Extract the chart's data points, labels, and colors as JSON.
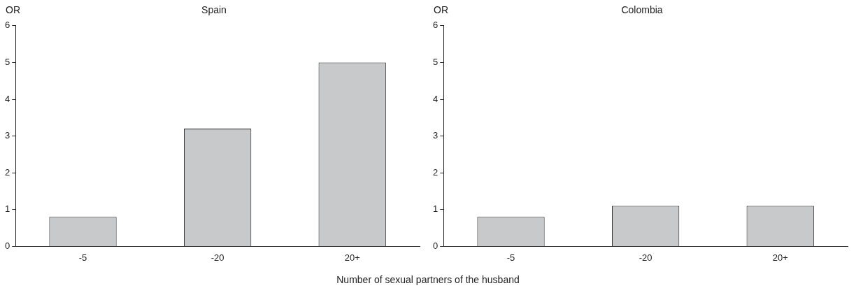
{
  "chart_data": [
    {
      "type": "bar",
      "title": "Spain",
      "ylabel": "OR",
      "xlabel": "Number of sexual partners of the husband",
      "categories": [
        "-5",
        "-20",
        "20+"
      ],
      "values": [
        0.8,
        3.2,
        5.0
      ],
      "color": "#c8c9cb",
      "ylim": [
        0,
        6
      ],
      "yticks": [
        0,
        1,
        2,
        3,
        4,
        5,
        6
      ],
      "grid": false,
      "legend": false
    },
    {
      "type": "bar",
      "title": "Colombia",
      "ylabel": "OR",
      "categories": [
        "-5",
        "-20",
        "20+"
      ],
      "values": [
        0.8,
        1.1,
        1.1
      ],
      "color": "#c8c9cb",
      "ylim": [
        0,
        6
      ],
      "yticks": [
        0,
        1,
        2,
        3,
        4,
        5,
        6
      ],
      "grid": false,
      "legend": false
    }
  ]
}
